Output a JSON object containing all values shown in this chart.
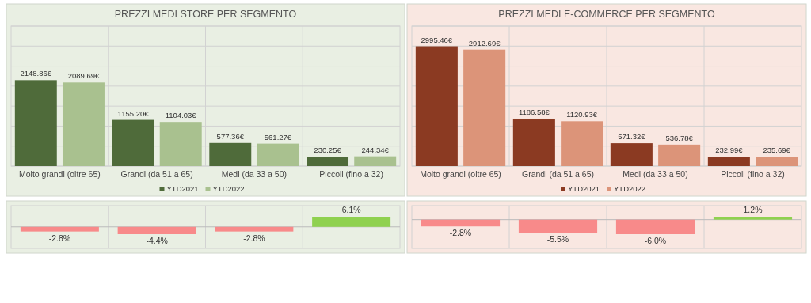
{
  "chart_data": [
    {
      "type": "bar",
      "title": "PREZZI MEDI STORE PER SEGMENTO",
      "categories": [
        "Molto grandi (oltre 65)",
        "Grandi (da 51 a 65)",
        "Medi (da 33 a 50)",
        "Piccoli (fino a 32)"
      ],
      "series": [
        {
          "name": "YTD2021",
          "color": "#4f6b3a",
          "values": [
            2148.86,
            1155.2,
            577.36,
            230.25
          ],
          "value_labels": [
            "2148.86€",
            "1155.20€",
            "577.36€",
            "230.25€"
          ]
        },
        {
          "name": "YTD2022",
          "color": "#a9c18f",
          "values": [
            2089.69,
            1104.03,
            561.27,
            244.34
          ],
          "value_labels": [
            "2089.69€",
            "1104.03€",
            "561.27€",
            "244.34€"
          ]
        }
      ],
      "ylim": [
        0,
        3500
      ],
      "yticks": [
        {
          "value": 0,
          "label": null
        },
        {
          "value": 500,
          "label": null
        },
        {
          "value": 1000,
          "label": null
        },
        {
          "value": 1500,
          "label": null
        },
        {
          "value": 2000,
          "label": null
        },
        {
          "value": 2500,
          "label": null
        },
        {
          "value": 3000,
          "label": null
        },
        {
          "value": 3500,
          "label": null
        }
      ],
      "grid": "y",
      "legend": "bottom",
      "tick_labels": "x"
    },
    {
      "type": "bar",
      "title": "PREZZI MEDI E-COMMERCE PER SEGMENTO",
      "categories": [
        "Molto grandi (oltre 65)",
        "Grandi (da 51 a 65)",
        "Medi (da 33 a 50)",
        "Piccoli (fino a 32)"
      ],
      "series": [
        {
          "name": "YTD2021",
          "color": "#8b3a22",
          "values": [
            2995.46,
            1186.58,
            571.32,
            232.99
          ],
          "value_labels": [
            "2995.46€",
            "1186.58€",
            "571.32€",
            "232.99€"
          ]
        },
        {
          "name": "YTD2022",
          "color": "#dc9479",
          "values": [
            2912.69,
            1120.93,
            536.78,
            235.69
          ],
          "value_labels": [
            "2912.69€",
            "1120.93€",
            "536.78€",
            "235.69€"
          ]
        }
      ],
      "ylim": [
        0,
        3500
      ],
      "yticks": [
        {
          "value": 0,
          "label": null
        },
        {
          "value": 500,
          "label": null
        },
        {
          "value": 1000,
          "label": null
        },
        {
          "value": 1500,
          "label": null
        },
        {
          "value": 2000,
          "label": null
        },
        {
          "value": 2500,
          "label": null
        },
        {
          "value": 3000,
          "label": null
        },
        {
          "value": 3500,
          "label": null
        }
      ],
      "grid": "y",
      "legend": "bottom",
      "tick_labels": "x"
    },
    {
      "type": "bar",
      "categories": [
        null,
        null,
        null,
        null
      ],
      "values": [
        -2.8,
        -4.4,
        -2.8,
        6.1
      ],
      "colors": [
        "#f88a8a",
        "#f88a8a",
        "#f88a8a",
        "#8fd14f"
      ],
      "value_labels": [
        "-2.8%",
        "-4.4%",
        "-2.8%",
        "6.1%"
      ],
      "tick_labels": false
    },
    {
      "type": "bar",
      "categories": [
        null,
        null,
        null,
        null
      ],
      "values": [
        -2.8,
        -5.5,
        -6.0,
        1.2
      ],
      "colors": [
        "#f88a8a",
        "#f88a8a",
        "#f88a8a",
        "#8fd14f"
      ],
      "value_labels": [
        "-2.8%",
        "-5.5%",
        "-6.0%",
        "1.2%"
      ],
      "tick_labels": false
    }
  ]
}
